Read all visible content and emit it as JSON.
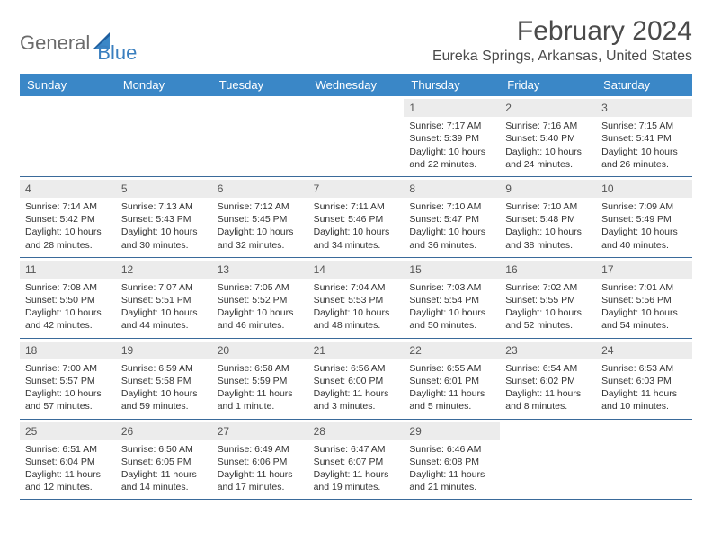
{
  "brand": {
    "part1": "General",
    "part2": "Blue"
  },
  "title": "February 2024",
  "location": "Eureka Springs, Arkansas, United States",
  "colors": {
    "header_bg": "#3a87c7",
    "header_text": "#ffffff",
    "daynum_bg": "#ececec",
    "rule": "#3a6a9a",
    "brand_gray": "#6b6b6b",
    "brand_blue": "#3a7fbf"
  },
  "day_headers": [
    "Sunday",
    "Monday",
    "Tuesday",
    "Wednesday",
    "Thursday",
    "Friday",
    "Saturday"
  ],
  "weeks": [
    [
      {
        "n": "",
        "sr": "",
        "ss": "",
        "dl": ""
      },
      {
        "n": "",
        "sr": "",
        "ss": "",
        "dl": ""
      },
      {
        "n": "",
        "sr": "",
        "ss": "",
        "dl": ""
      },
      {
        "n": "",
        "sr": "",
        "ss": "",
        "dl": ""
      },
      {
        "n": "1",
        "sr": "Sunrise: 7:17 AM",
        "ss": "Sunset: 5:39 PM",
        "dl": "Daylight: 10 hours and 22 minutes."
      },
      {
        "n": "2",
        "sr": "Sunrise: 7:16 AM",
        "ss": "Sunset: 5:40 PM",
        "dl": "Daylight: 10 hours and 24 minutes."
      },
      {
        "n": "3",
        "sr": "Sunrise: 7:15 AM",
        "ss": "Sunset: 5:41 PM",
        "dl": "Daylight: 10 hours and 26 minutes."
      }
    ],
    [
      {
        "n": "4",
        "sr": "Sunrise: 7:14 AM",
        "ss": "Sunset: 5:42 PM",
        "dl": "Daylight: 10 hours and 28 minutes."
      },
      {
        "n": "5",
        "sr": "Sunrise: 7:13 AM",
        "ss": "Sunset: 5:43 PM",
        "dl": "Daylight: 10 hours and 30 minutes."
      },
      {
        "n": "6",
        "sr": "Sunrise: 7:12 AM",
        "ss": "Sunset: 5:45 PM",
        "dl": "Daylight: 10 hours and 32 minutes."
      },
      {
        "n": "7",
        "sr": "Sunrise: 7:11 AM",
        "ss": "Sunset: 5:46 PM",
        "dl": "Daylight: 10 hours and 34 minutes."
      },
      {
        "n": "8",
        "sr": "Sunrise: 7:10 AM",
        "ss": "Sunset: 5:47 PM",
        "dl": "Daylight: 10 hours and 36 minutes."
      },
      {
        "n": "9",
        "sr": "Sunrise: 7:10 AM",
        "ss": "Sunset: 5:48 PM",
        "dl": "Daylight: 10 hours and 38 minutes."
      },
      {
        "n": "10",
        "sr": "Sunrise: 7:09 AM",
        "ss": "Sunset: 5:49 PM",
        "dl": "Daylight: 10 hours and 40 minutes."
      }
    ],
    [
      {
        "n": "11",
        "sr": "Sunrise: 7:08 AM",
        "ss": "Sunset: 5:50 PM",
        "dl": "Daylight: 10 hours and 42 minutes."
      },
      {
        "n": "12",
        "sr": "Sunrise: 7:07 AM",
        "ss": "Sunset: 5:51 PM",
        "dl": "Daylight: 10 hours and 44 minutes."
      },
      {
        "n": "13",
        "sr": "Sunrise: 7:05 AM",
        "ss": "Sunset: 5:52 PM",
        "dl": "Daylight: 10 hours and 46 minutes."
      },
      {
        "n": "14",
        "sr": "Sunrise: 7:04 AM",
        "ss": "Sunset: 5:53 PM",
        "dl": "Daylight: 10 hours and 48 minutes."
      },
      {
        "n": "15",
        "sr": "Sunrise: 7:03 AM",
        "ss": "Sunset: 5:54 PM",
        "dl": "Daylight: 10 hours and 50 minutes."
      },
      {
        "n": "16",
        "sr": "Sunrise: 7:02 AM",
        "ss": "Sunset: 5:55 PM",
        "dl": "Daylight: 10 hours and 52 minutes."
      },
      {
        "n": "17",
        "sr": "Sunrise: 7:01 AM",
        "ss": "Sunset: 5:56 PM",
        "dl": "Daylight: 10 hours and 54 minutes."
      }
    ],
    [
      {
        "n": "18",
        "sr": "Sunrise: 7:00 AM",
        "ss": "Sunset: 5:57 PM",
        "dl": "Daylight: 10 hours and 57 minutes."
      },
      {
        "n": "19",
        "sr": "Sunrise: 6:59 AM",
        "ss": "Sunset: 5:58 PM",
        "dl": "Daylight: 10 hours and 59 minutes."
      },
      {
        "n": "20",
        "sr": "Sunrise: 6:58 AM",
        "ss": "Sunset: 5:59 PM",
        "dl": "Daylight: 11 hours and 1 minute."
      },
      {
        "n": "21",
        "sr": "Sunrise: 6:56 AM",
        "ss": "Sunset: 6:00 PM",
        "dl": "Daylight: 11 hours and 3 minutes."
      },
      {
        "n": "22",
        "sr": "Sunrise: 6:55 AM",
        "ss": "Sunset: 6:01 PM",
        "dl": "Daylight: 11 hours and 5 minutes."
      },
      {
        "n": "23",
        "sr": "Sunrise: 6:54 AM",
        "ss": "Sunset: 6:02 PM",
        "dl": "Daylight: 11 hours and 8 minutes."
      },
      {
        "n": "24",
        "sr": "Sunrise: 6:53 AM",
        "ss": "Sunset: 6:03 PM",
        "dl": "Daylight: 11 hours and 10 minutes."
      }
    ],
    [
      {
        "n": "25",
        "sr": "Sunrise: 6:51 AM",
        "ss": "Sunset: 6:04 PM",
        "dl": "Daylight: 11 hours and 12 minutes."
      },
      {
        "n": "26",
        "sr": "Sunrise: 6:50 AM",
        "ss": "Sunset: 6:05 PM",
        "dl": "Daylight: 11 hours and 14 minutes."
      },
      {
        "n": "27",
        "sr": "Sunrise: 6:49 AM",
        "ss": "Sunset: 6:06 PM",
        "dl": "Daylight: 11 hours and 17 minutes."
      },
      {
        "n": "28",
        "sr": "Sunrise: 6:47 AM",
        "ss": "Sunset: 6:07 PM",
        "dl": "Daylight: 11 hours and 19 minutes."
      },
      {
        "n": "29",
        "sr": "Sunrise: 6:46 AM",
        "ss": "Sunset: 6:08 PM",
        "dl": "Daylight: 11 hours and 21 minutes."
      },
      {
        "n": "",
        "sr": "",
        "ss": "",
        "dl": ""
      },
      {
        "n": "",
        "sr": "",
        "ss": "",
        "dl": ""
      }
    ]
  ]
}
